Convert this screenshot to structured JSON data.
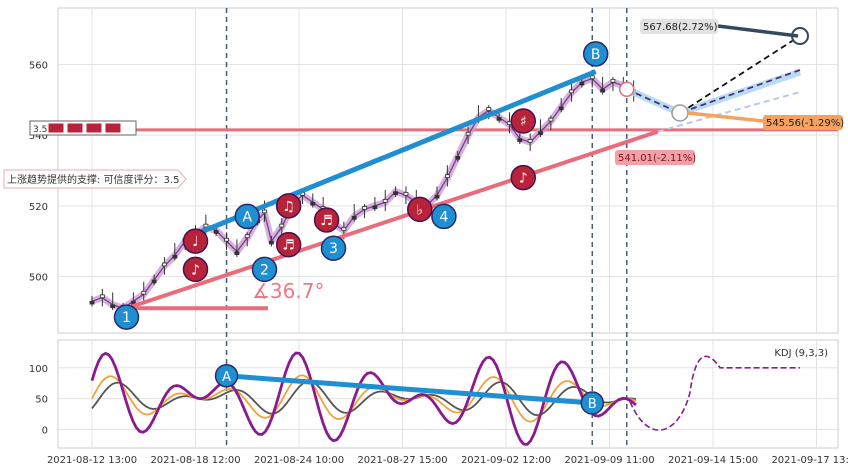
{
  "chart_data": [
    {
      "type": "candlestick",
      "x_ticks": [
        "2021-08-12 13:00",
        "2021-08-18 12:00",
        "2021-08-24 10:00",
        "2021-08-27 15:00",
        "2021-09-02 12:00",
        "2021-09-09 11:00",
        "2021-09-14 15:00",
        "2021-09-17 13:00"
      ],
      "y_ticks": [
        500,
        520,
        540,
        560
      ],
      "ylim": [
        484,
        576
      ],
      "grid": true,
      "price_series": [
        {
          "x": 0.0,
          "y": 493
        },
        {
          "x": 0.3,
          "y": 494
        },
        {
          "x": 0.6,
          "y": 492
        },
        {
          "x": 0.9,
          "y": 491
        },
        {
          "x": 1.2,
          "y": 493
        },
        {
          "x": 1.5,
          "y": 495
        },
        {
          "x": 1.8,
          "y": 499
        },
        {
          "x": 2.1,
          "y": 503
        },
        {
          "x": 2.4,
          "y": 506
        },
        {
          "x": 2.7,
          "y": 510
        },
        {
          "x": 3.0,
          "y": 512
        },
        {
          "x": 3.3,
          "y": 514
        },
        {
          "x": 3.6,
          "y": 513
        },
        {
          "x": 3.9,
          "y": 510
        },
        {
          "x": 4.2,
          "y": 507
        },
        {
          "x": 4.5,
          "y": 511
        },
        {
          "x": 4.8,
          "y": 516
        },
        {
          "x": 5.0,
          "y": 518
        },
        {
          "x": 5.2,
          "y": 510
        },
        {
          "x": 5.5,
          "y": 514
        },
        {
          "x": 5.8,
          "y": 520
        },
        {
          "x": 6.1,
          "y": 523
        },
        {
          "x": 6.4,
          "y": 521
        },
        {
          "x": 6.7,
          "y": 519
        },
        {
          "x": 7.0,
          "y": 515
        },
        {
          "x": 7.3,
          "y": 513
        },
        {
          "x": 7.6,
          "y": 517
        },
        {
          "x": 7.9,
          "y": 519
        },
        {
          "x": 8.2,
          "y": 520
        },
        {
          "x": 8.5,
          "y": 521
        },
        {
          "x": 8.8,
          "y": 524
        },
        {
          "x": 9.1,
          "y": 523
        },
        {
          "x": 9.4,
          "y": 521
        },
        {
          "x": 9.7,
          "y": 520
        },
        {
          "x": 10.0,
          "y": 523
        },
        {
          "x": 10.3,
          "y": 528
        },
        {
          "x": 10.6,
          "y": 534
        },
        {
          "x": 10.9,
          "y": 540
        },
        {
          "x": 11.2,
          "y": 545
        },
        {
          "x": 11.5,
          "y": 547
        },
        {
          "x": 11.8,
          "y": 545
        },
        {
          "x": 12.1,
          "y": 543
        },
        {
          "x": 12.4,
          "y": 539
        },
        {
          "x": 12.7,
          "y": 538
        },
        {
          "x": 13.0,
          "y": 541
        },
        {
          "x": 13.3,
          "y": 544
        },
        {
          "x": 13.6,
          "y": 548
        },
        {
          "x": 13.9,
          "y": 552
        },
        {
          "x": 14.2,
          "y": 555
        },
        {
          "x": 14.5,
          "y": 556
        },
        {
          "x": 14.8,
          "y": 553
        },
        {
          "x": 15.1,
          "y": 555
        },
        {
          "x": 15.4,
          "y": 554
        },
        {
          "x": 15.7,
          "y": 552
        }
      ],
      "trend_lines": [
        {
          "name": "support",
          "color": "#e86c7a",
          "from": {
            "x": 1.0,
            "y": 491
          },
          "to": {
            "x": 16.4,
            "y": 541.01
          }
        },
        {
          "name": "resistance",
          "color": "#1f8fd1",
          "from": {
            "x": 3.0,
            "y": 512
          },
          "to": {
            "x": 14.6,
            "y": 558
          }
        },
        {
          "name": "horizontal-support",
          "color": "#e86c7a",
          "from": {
            "x": 0.0,
            "y": 541.5
          },
          "to": {
            "x": 20.5,
            "y": 541.5
          }
        }
      ],
      "wave_points": [
        {
          "label": "1",
          "x": 1.0,
          "y": 488.5
        },
        {
          "label": "2",
          "x": 5.0,
          "y": 502
        },
        {
          "label": "3",
          "x": 7.0,
          "y": 508
        },
        {
          "label": "4",
          "x": 10.2,
          "y": 517
        },
        {
          "label": "A",
          "x": 4.5,
          "y": 517
        },
        {
          "label": "B",
          "x": 14.6,
          "y": 563
        }
      ],
      "note_markers": [
        {
          "label": "♪",
          "x": 3.0,
          "y": 502
        },
        {
          "label": "♩",
          "x": 3.0,
          "y": 510
        },
        {
          "label": "♫",
          "x": 5.7,
          "y": 520
        },
        {
          "label": "♬",
          "x": 5.7,
          "y": 509
        },
        {
          "label": "♬",
          "x": 6.8,
          "y": 516
        },
        {
          "label": "♭",
          "x": 9.5,
          "y": 519
        },
        {
          "label": "♯",
          "x": 12.5,
          "y": 544
        },
        {
          "label": "♪",
          "x": 12.5,
          "y": 528
        }
      ],
      "forecast": [
        {
          "label": "567.68(2.72%)",
          "value": 567.68,
          "change_pct": 2.72,
          "color": "#34495e"
        },
        {
          "label": "545.56(-1.29%)",
          "value": 545.56,
          "change_pct": -1.29,
          "color": "#f5a15f"
        },
        {
          "label": "541.01(-2.11%)",
          "value": 541.01,
          "change_pct": -2.11,
          "color": "#e86c7a"
        }
      ],
      "annotations": {
        "angle_label": "∡36.7°",
        "support_label": "上涨趋势提供的支撑: 可信度评分：3.5",
        "score_box": "3.5"
      },
      "vlines_x": [
        3.9,
        14.5,
        15.5
      ]
    },
    {
      "type": "line",
      "legend": "KDJ (9,3,3)",
      "y_ticks": [
        0,
        50,
        100
      ],
      "ylim": [
        -30,
        145
      ],
      "series": [
        {
          "name": "K",
          "color": "#f0a33a"
        },
        {
          "name": "D",
          "color": "#555555"
        },
        {
          "name": "J",
          "color": "#8b1a8f"
        }
      ],
      "trend": {
        "from_label": "A",
        "from_value": 87,
        "to_label": "B",
        "to_value": 43
      }
    }
  ]
}
